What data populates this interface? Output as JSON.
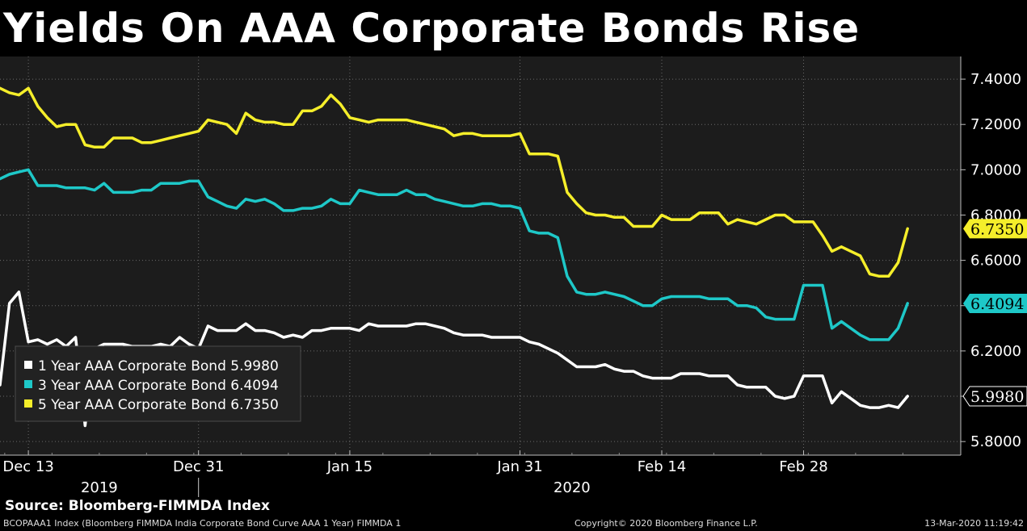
{
  "title": "Yields On AAA Corporate Bonds Rise",
  "source": "Source: Bloomberg-FIMMDA Index",
  "footer": {
    "left": "BCOPAAA1 Index (Bloomberg FIMMDA India Corporate Bond Curve AAA 1 Year) FIMMDA 1",
    "center": "Copyright© 2020 Bloomberg Finance L.P.",
    "right": "13-Mar-2020 11:19:42"
  },
  "colors": {
    "background": "#000000",
    "plot": "#1c1c1c",
    "one_year": "#ffffff",
    "three_year": "#1ec8c8",
    "five_year": "#f5ee2a"
  },
  "chart_data": {
    "type": "line",
    "title": "Yields On AAA Corporate Bonds Rise",
    "xlabel": "",
    "ylabel": "",
    "ylim": [
      5.74,
      7.5
    ],
    "y_ticks": [
      "7.4000",
      "7.2000",
      "7.0000",
      "6.8000",
      "6.6000",
      "6.4000",
      "6.2000",
      "6.0000",
      "5.8000"
    ],
    "y_tick_values": [
      7.4,
      7.2,
      7.0,
      6.8,
      6.6,
      6.4,
      6.2,
      6.0,
      5.8
    ],
    "x_ticks": [
      {
        "label": "Dec 13",
        "index": 3
      },
      {
        "label": "Dec 31",
        "index": 21
      },
      {
        "label": "Jan 15",
        "index": 37
      },
      {
        "label": "Jan 31",
        "index": 55
      },
      {
        "label": "Feb 14",
        "index": 70
      },
      {
        "label": "Feb 28",
        "index": 85
      }
    ],
    "year_labels": [
      {
        "label": "2019",
        "index": 10.5
      },
      {
        "label": "2020",
        "index": 60.5
      }
    ],
    "year_separator_index": 21,
    "grid": true,
    "legend_position": "bottom-left",
    "series": [
      {
        "name": "1 Year AAA Corporate Bond",
        "legend": "1 Year AAA Corporate Bond 5.9980",
        "last_value": "5.9980",
        "color": "#ffffff",
        "values": [
          6.05,
          6.41,
          6.46,
          6.24,
          6.25,
          6.23,
          6.25,
          6.22,
          6.26,
          5.87,
          6.21,
          6.23,
          6.23,
          6.23,
          6.22,
          6.22,
          6.22,
          6.23,
          6.22,
          6.26,
          6.23,
          6.21,
          6.31,
          6.29,
          6.29,
          6.29,
          6.32,
          6.29,
          6.29,
          6.28,
          6.26,
          6.27,
          6.26,
          6.29,
          6.29,
          6.3,
          6.3,
          6.3,
          6.29,
          6.32,
          6.31,
          6.31,
          6.31,
          6.31,
          6.32,
          6.32,
          6.31,
          6.3,
          6.28,
          6.27,
          6.27,
          6.27,
          6.26,
          6.26,
          6.26,
          6.26,
          6.24,
          6.23,
          6.21,
          6.19,
          6.16,
          6.13,
          6.13,
          6.13,
          6.14,
          6.12,
          6.11,
          6.11,
          6.09,
          6.08,
          6.08,
          6.08,
          6.1,
          6.1,
          6.1,
          6.09,
          6.09,
          6.09,
          6.05,
          6.04,
          6.04,
          6.04,
          6.0,
          5.99,
          6.0,
          6.09,
          6.09,
          6.09,
          5.97,
          6.02,
          5.99,
          5.96,
          5.95,
          5.95,
          5.96,
          5.95,
          6.0
        ]
      },
      {
        "name": "3 Year AAA Corporate Bond",
        "legend": "3 Year AAA Corporate Bond 6.4094",
        "last_value": "6.4094",
        "color": "#1ec8c8",
        "values": [
          6.96,
          6.98,
          6.99,
          7.0,
          6.93,
          6.93,
          6.93,
          6.92,
          6.92,
          6.92,
          6.91,
          6.94,
          6.9,
          6.9,
          6.9,
          6.91,
          6.91,
          6.94,
          6.94,
          6.94,
          6.95,
          6.95,
          6.88,
          6.86,
          6.84,
          6.83,
          6.87,
          6.86,
          6.87,
          6.85,
          6.82,
          6.82,
          6.83,
          6.83,
          6.84,
          6.87,
          6.85,
          6.85,
          6.91,
          6.9,
          6.89,
          6.89,
          6.89,
          6.91,
          6.89,
          6.89,
          6.87,
          6.86,
          6.85,
          6.84,
          6.84,
          6.85,
          6.85,
          6.84,
          6.84,
          6.83,
          6.73,
          6.72,
          6.72,
          6.7,
          6.53,
          6.46,
          6.45,
          6.45,
          6.46,
          6.45,
          6.44,
          6.42,
          6.4,
          6.4,
          6.43,
          6.44,
          6.44,
          6.44,
          6.44,
          6.43,
          6.43,
          6.43,
          6.4,
          6.4,
          6.39,
          6.35,
          6.34,
          6.34,
          6.34,
          6.49,
          6.49,
          6.49,
          6.3,
          6.33,
          6.3,
          6.27,
          6.25,
          6.25,
          6.25,
          6.3,
          6.41
        ]
      },
      {
        "name": "5 Year AAA Corporate Bond",
        "legend": "5 Year AAA Corporate Bond 6.7350",
        "last_value": "6.7350",
        "color": "#f5ee2a",
        "values": [
          7.36,
          7.34,
          7.33,
          7.36,
          7.28,
          7.23,
          7.19,
          7.2,
          7.2,
          7.11,
          7.1,
          7.1,
          7.14,
          7.14,
          7.14,
          7.12,
          7.12,
          7.13,
          7.14,
          7.15,
          7.16,
          7.17,
          7.22,
          7.21,
          7.2,
          7.16,
          7.25,
          7.22,
          7.21,
          7.21,
          7.2,
          7.2,
          7.26,
          7.26,
          7.28,
          7.33,
          7.29,
          7.23,
          7.22,
          7.21,
          7.22,
          7.22,
          7.22,
          7.22,
          7.21,
          7.2,
          7.19,
          7.18,
          7.15,
          7.16,
          7.16,
          7.15,
          7.15,
          7.15,
          7.15,
          7.16,
          7.07,
          7.07,
          7.07,
          7.06,
          6.9,
          6.85,
          6.81,
          6.8,
          6.8,
          6.79,
          6.79,
          6.75,
          6.75,
          6.75,
          6.8,
          6.78,
          6.78,
          6.78,
          6.81,
          6.81,
          6.81,
          6.76,
          6.78,
          6.77,
          6.76,
          6.78,
          6.8,
          6.8,
          6.77,
          6.77,
          6.77,
          6.71,
          6.64,
          6.66,
          6.64,
          6.62,
          6.54,
          6.53,
          6.53,
          6.59,
          6.74
        ]
      }
    ]
  }
}
